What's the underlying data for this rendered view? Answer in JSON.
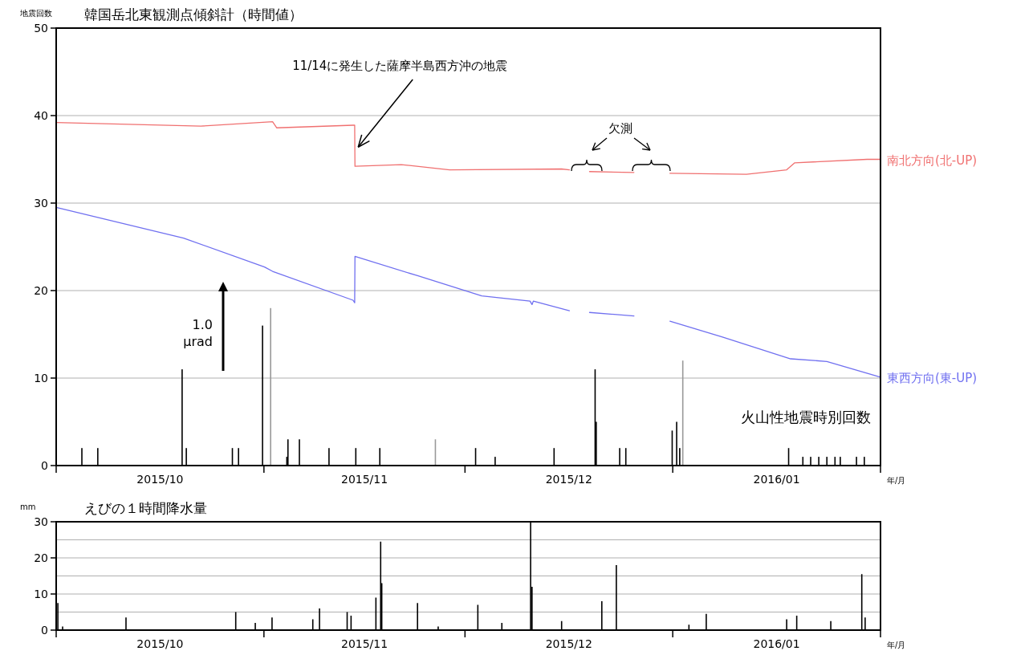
{
  "chart_data": [
    {
      "type": "bar",
      "title": "韓国岳北東観測点傾斜計（時間値）",
      "ylabel": "地震回数",
      "xlabel": "年/月",
      "xlim": [
        "2015-10-01",
        "2016-02-01"
      ],
      "xticks": [
        {
          "value": "2015-10-01",
          "label": null
        },
        {
          "value": "2015-10-16T12:00",
          "label": "2015/10"
        },
        {
          "value": "2015-11-01",
          "label": null
        },
        {
          "value": "2015-11-16",
          "label": "2015/11"
        },
        {
          "value": "2015-12-01",
          "label": null
        },
        {
          "value": "2015-12-16T12:00",
          "label": "2015/12"
        },
        {
          "value": "2016-01-01",
          "label": null
        },
        {
          "value": "2016-01-16T12:00",
          "label": "2016/01"
        },
        {
          "value": "2016-02-01",
          "label": null
        }
      ],
      "ylim": [
        0,
        50
      ],
      "yticks": [
        0,
        10,
        20,
        30,
        40,
        50
      ],
      "grid": "y",
      "legend": false,
      "annotations": [
        {
          "text": "11/14に発生した薩摩半島西方沖の地震",
          "x": "2015-11-14T14:00",
          "y": 36.4
        },
        "欠測",
        "1.0 µrad"
      ],
      "series": [
        {
          "name": "火山性地震時別回数",
          "color": "#000000",
          "x": [
            "2015-10-04T20:00",
            "2015-10-07T05:00",
            "2015-10-19T19:00",
            "2015-10-20T10:00",
            "2015-10-27T07:00",
            "2015-10-28T05:00",
            "2015-10-31T19:00",
            "2015-11-02T00:00",
            "2015-11-04T10:00",
            "2015-11-04T14:00",
            "2015-11-06T07:00",
            "2015-11-10T17:00",
            "2015-11-14T17:00",
            "2015-11-18T07:00",
            "2015-11-26T14:00",
            "2015-12-02T14:00",
            "2015-12-05T12:00",
            "2015-12-14T07:00",
            "2015-12-20T10:00",
            "2015-12-20T14:00",
            "2015-12-24T02:00",
            "2015-12-25T00:00",
            "2015-12-31T22:00",
            "2016-01-01T14:00",
            "2016-01-02T01:00",
            "2016-01-02T12:00",
            "2016-01-18T07:00",
            "2016-01-20T10:00",
            "2016-01-21T14:00",
            "2016-01-22T19:00",
            "2016-01-24T00:00",
            "2016-01-25T05:00",
            "2016-01-26T00:00",
            "2016-01-28T10:00",
            "2016-01-29T14:00"
          ],
          "values": [
            2,
            2,
            11,
            2,
            2,
            2,
            16,
            18,
            1,
            3,
            3,
            2,
            2,
            2,
            3,
            2,
            1,
            2,
            11,
            5,
            2,
            2,
            4,
            5,
            2,
            12,
            2,
            1,
            1,
            1,
            1,
            1,
            1,
            1,
            1
          ],
          "colors": [
            "#000000",
            "#000000",
            "#000000",
            "#000000",
            "#000000",
            "#000000",
            "#000000",
            "#999999",
            "#000000",
            "#000000",
            "#000000",
            "#000000",
            "#000000",
            "#000000",
            "#999999",
            "#000000",
            "#000000",
            "#000000",
            "#000000",
            "#000000",
            "#000000",
            "#000000",
            "#000000",
            "#000000",
            "#000000",
            "#999999",
            "#000000",
            "#000000",
            "#000000",
            "#000000",
            "#000000",
            "#000000",
            "#000000",
            "#000000",
            "#000000"
          ]
        },
        {
          "type": "line",
          "name": "南北方向(北-UP)",
          "color": "#f07070",
          "x": [
            "2015-10-01",
            "2015-10-22T14:00",
            "2015-11-02T07:00",
            "2015-11-02T22:00",
            "2015-11-14T07:00",
            "2015-11-14T13:00",
            "2015-11-14T14:00",
            "2015-11-21T12:00",
            "2015-11-28T17:00",
            "2015-12-15T10:00",
            "2015-12-16T14:00",
            "2015-12-18",
            "2015-12-19T14:00",
            "2015-12-26T05:00",
            "2015-12-29",
            "2015-12-31T14:00",
            "2016-01-12",
            "2016-01-18",
            "2016-01-19T05:00",
            "2016-01-30",
            "2016-02-01"
          ],
          "values": [
            39.2,
            38.8,
            39.3,
            38.6,
            38.9,
            38.9,
            34.2,
            34.4,
            33.8,
            33.9,
            33.8,
            null,
            33.6,
            33.5,
            null,
            33.4,
            33.3,
            33.8,
            34.6,
            35.0,
            35.0
          ]
        },
        {
          "type": "line",
          "name": "東西方向(東-UP)",
          "color": "#7070f0",
          "x": [
            "2015-10-01",
            "2015-10-20",
            "2015-11-01T02:00",
            "2015-11-02T07:00",
            "2015-11-14T07:00",
            "2015-11-14T13:00",
            "2015-11-14T14:00",
            "2015-11-23T22:00",
            "2015-12-03T12:00",
            "2015-12-10T17:00",
            "2015-12-11T00:00",
            "2015-12-11T05:00",
            "2015-12-16T14:00",
            "2015-12-18",
            "2015-12-19T14:00",
            "2015-12-26T05:00",
            "2015-12-29",
            "2015-12-31T14:00",
            "2016-01-08T10:00",
            "2016-01-18T14:00",
            "2016-01-24",
            "2016-02-01"
          ],
          "values": [
            29.5,
            26.0,
            22.7,
            22.2,
            18.9,
            18.6,
            23.9,
            21.7,
            19.4,
            18.8,
            18.4,
            18.8,
            17.7,
            null,
            17.5,
            17.1,
            null,
            16.5,
            14.7,
            12.2,
            11.9,
            10.1
          ]
        }
      ]
    },
    {
      "type": "bar",
      "title": "えびの１時間降水量",
      "ylabel": "mm",
      "xlabel": "年/月",
      "xlim": [
        "2015-10-01",
        "2016-02-01"
      ],
      "xticks": [
        {
          "value": "2015-10-01",
          "label": null
        },
        {
          "value": "2015-10-16T12:00",
          "label": "2015/10"
        },
        {
          "value": "2015-11-01",
          "label": null
        },
        {
          "value": "2015-11-16",
          "label": "2015/11"
        },
        {
          "value": "2015-12-01",
          "label": null
        },
        {
          "value": "2015-12-16T12:00",
          "label": "2015/12"
        },
        {
          "value": "2016-01-01",
          "label": null
        },
        {
          "value": "2016-01-16T12:00",
          "label": "2016/01"
        },
        {
          "value": "2016-02-01",
          "label": null
        }
      ],
      "ylim": [
        0,
        30
      ],
      "yticks": [
        0,
        {
          "value": 5,
          "label": null
        },
        10,
        {
          "value": 15,
          "label": null
        },
        20,
        {
          "value": 25,
          "label": null
        },
        30
      ],
      "grid": "y",
      "legend": false,
      "series": [
        {
          "color": "#000000",
          "x": [
            "2015-10-01T06:00",
            "2015-10-01T23:00",
            "2015-10-11T10:00",
            "2015-10-27T19:00",
            "2015-10-30T17:00",
            "2015-11-02T05:00",
            "2015-11-08T07:00",
            "2015-11-09T07:00",
            "2015-11-13T10:00",
            "2015-11-14T00:00",
            "2015-11-17T17:00",
            "2015-11-18T10:00",
            "2015-11-18T14:00",
            "2015-11-23T22:00",
            "2015-11-27T00:00",
            "2015-12-02T22:00",
            "2015-12-06T12:00",
            "2015-12-10T19:00",
            "2015-12-11T00:00",
            "2015-12-15T10:00",
            "2015-12-21T10:00",
            "2015-12-23T14:00",
            "2016-01-03T10:00",
            "2016-01-06T00:00",
            "2016-01-18T00:00",
            "2016-01-19T12:00",
            "2016-01-24T14:00",
            "2016-01-29T05:00",
            "2016-01-29T17:00"
          ],
          "values": [
            7.5,
            1,
            3.5,
            5,
            2,
            3.5,
            3,
            6,
            5,
            4,
            9,
            24.5,
            13,
            7.5,
            1,
            7,
            2,
            30,
            12,
            2.5,
            8,
            18,
            1.5,
            4.5,
            3,
            4,
            2.5,
            15.5,
            3.5
          ]
        }
      ]
    }
  ]
}
